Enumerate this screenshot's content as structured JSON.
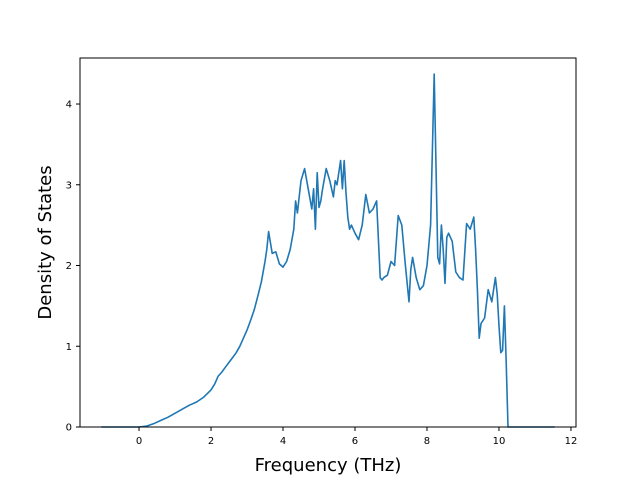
{
  "chart_data": {
    "type": "line",
    "title": "",
    "xlabel": "Frequency (THz)",
    "ylabel": "Density of States",
    "xlim": [
      -1.64,
      12.14
    ],
    "ylim": [
      0,
      4.57
    ],
    "xticks": [
      0,
      2,
      4,
      6,
      8,
      10,
      12
    ],
    "yticks": [
      0,
      1,
      2,
      3,
      4
    ],
    "grid": false,
    "legend": "none",
    "colors": {
      "line": "#1f77b4",
      "axes": "#000000",
      "background": "#ffffff"
    },
    "series": [
      {
        "x": [
          -1.05,
          0.0,
          0.2,
          0.4,
          0.6,
          0.8,
          1.0,
          1.2,
          1.4,
          1.6,
          1.8,
          2.0,
          2.1,
          2.2,
          2.3,
          2.4,
          2.5,
          2.6,
          2.7,
          2.8,
          2.9,
          3.0,
          3.1,
          3.2,
          3.3,
          3.4,
          3.5,
          3.55,
          3.6,
          3.7,
          3.8,
          3.9,
          4.0,
          4.1,
          4.2,
          4.3,
          4.35,
          4.4,
          4.5,
          4.6,
          4.7,
          4.8,
          4.85,
          4.9,
          4.95,
          5.0,
          5.05,
          5.1,
          5.2,
          5.3,
          5.4,
          5.45,
          5.5,
          5.6,
          5.65,
          5.7,
          5.75,
          5.8,
          5.85,
          5.9,
          6.0,
          6.1,
          6.2,
          6.3,
          6.4,
          6.5,
          6.6,
          6.7,
          6.75,
          6.8,
          6.9,
          7.0,
          7.1,
          7.2,
          7.3,
          7.4,
          7.5,
          7.55,
          7.6,
          7.7,
          7.8,
          7.9,
          8.0,
          8.1,
          8.2,
          8.3,
          8.35,
          8.4,
          8.45,
          8.5,
          8.55,
          8.6,
          8.65,
          8.7,
          8.8,
          8.9,
          9.0,
          9.1,
          9.2,
          9.3,
          9.35,
          9.4,
          9.45,
          9.5,
          9.6,
          9.7,
          9.8,
          9.9,
          9.95,
          10.0,
          10.05,
          10.1,
          10.15,
          10.2,
          10.25,
          10.3,
          10.35,
          10.4,
          10.45,
          10.5,
          10.6,
          11.55
        ],
        "y": [
          0.0,
          0.0,
          0.01,
          0.04,
          0.08,
          0.12,
          0.17,
          0.22,
          0.27,
          0.31,
          0.37,
          0.46,
          0.53,
          0.63,
          0.68,
          0.74,
          0.8,
          0.86,
          0.92,
          1.0,
          1.1,
          1.2,
          1.32,
          1.45,
          1.62,
          1.8,
          2.05,
          2.2,
          2.42,
          2.15,
          2.17,
          2.02,
          1.98,
          2.05,
          2.2,
          2.45,
          2.8,
          2.65,
          3.05,
          3.2,
          2.95,
          2.7,
          2.95,
          2.45,
          3.15,
          2.72,
          2.8,
          2.95,
          3.2,
          3.05,
          2.85,
          3.05,
          3.0,
          3.3,
          2.95,
          3.3,
          2.9,
          2.6,
          2.45,
          2.5,
          2.4,
          2.32,
          2.5,
          2.88,
          2.65,
          2.7,
          2.8,
          1.85,
          1.82,
          1.85,
          1.88,
          2.05,
          2.0,
          2.62,
          2.5,
          2.0,
          1.55,
          1.95,
          2.1,
          1.85,
          1.7,
          1.75,
          2.0,
          2.5,
          4.37,
          2.1,
          2.02,
          2.5,
          2.2,
          1.78,
          2.35,
          2.4,
          2.35,
          2.3,
          1.92,
          1.85,
          1.82,
          2.52,
          2.45,
          2.6,
          2.2,
          1.7,
          1.1,
          1.28,
          1.35,
          1.7,
          1.55,
          1.85,
          1.65,
          1.25,
          0.92,
          0.95,
          1.5,
          0.8,
          0.0,
          0.0,
          0.0,
          0.0,
          0.0,
          0.0,
          0.0,
          0.0
        ]
      }
    ]
  }
}
